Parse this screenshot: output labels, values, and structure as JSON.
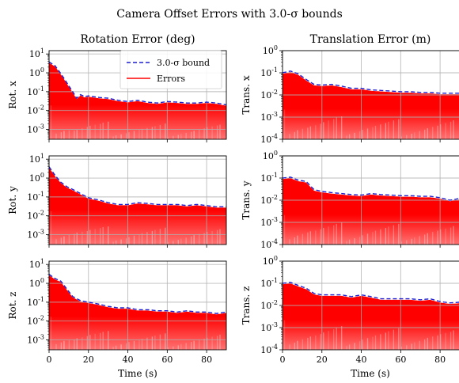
{
  "figure": {
    "title": "Camera Offset Errors with 3.0-σ bounds",
    "col_titles": [
      "Rotation Error (deg)",
      "Translation Error (m)"
    ],
    "xlabel": "Time (s)"
  },
  "legend": {
    "bound": "3.0-σ bound",
    "errors": "Errors"
  },
  "colors": {
    "bound": "#1f1fd0",
    "errors": "#ff0000",
    "grid": "#b0b0b0"
  },
  "chart_data": [
    {
      "type": "area",
      "row": 0,
      "col": 0,
      "ylabel": "Rot. x",
      "yscale": "log",
      "xlim": [
        0,
        90
      ],
      "ylim": [
        0.0003,
        15
      ],
      "xticks": [
        0,
        20,
        40,
        60,
        80
      ],
      "yticks": [
        0.001,
        0.01,
        0.1,
        1,
        10
      ],
      "ytick_labels": [
        "10^-3",
        "10^-2",
        "10^-1",
        "10^0",
        "10^1"
      ],
      "series": [
        {
          "name": "3.0-σ bound",
          "x": [
            0,
            3,
            6,
            9,
            12,
            14,
            16,
            18,
            20,
            25,
            30,
            35,
            40,
            45,
            50,
            55,
            60,
            65,
            70,
            75,
            80,
            85,
            90
          ],
          "y": [
            3.8,
            2.4,
            0.9,
            0.3,
            0.1,
            0.045,
            0.07,
            0.055,
            0.06,
            0.05,
            0.045,
            0.035,
            0.03,
            0.035,
            0.028,
            0.025,
            0.03,
            0.028,
            0.025,
            0.025,
            0.028,
            0.025,
            0.02
          ]
        }
      ]
    },
    {
      "type": "area",
      "row": 1,
      "col": 0,
      "ylabel": "Rot. y",
      "yscale": "log",
      "xlim": [
        0,
        90
      ],
      "ylim": [
        0.0003,
        15
      ],
      "xticks": [
        0,
        20,
        40,
        60,
        80
      ],
      "yticks": [
        0.001,
        0.01,
        0.1,
        1,
        10
      ],
      "ytick_labels": [
        "10^-3",
        "10^-2",
        "10^-1",
        "10^0",
        "10^1"
      ],
      "series": [
        {
          "name": "3.0-σ bound",
          "x": [
            0,
            3,
            6,
            9,
            12,
            16,
            20,
            25,
            30,
            35,
            40,
            45,
            50,
            55,
            60,
            65,
            70,
            75,
            80,
            85,
            90
          ],
          "y": [
            4,
            1.4,
            0.6,
            0.35,
            0.25,
            0.15,
            0.09,
            0.07,
            0.05,
            0.04,
            0.04,
            0.05,
            0.045,
            0.04,
            0.04,
            0.04,
            0.035,
            0.04,
            0.035,
            0.03,
            0.03
          ]
        }
      ]
    },
    {
      "type": "area",
      "row": 2,
      "col": 0,
      "ylabel": "Rot. z",
      "yscale": "log",
      "xlim": [
        0,
        90
      ],
      "ylim": [
        0.0003,
        15
      ],
      "xticks": [
        0,
        20,
        40,
        60,
        80
      ],
      "yticks": [
        0.001,
        0.01,
        0.1,
        1,
        10
      ],
      "ytick_labels": [
        "10^-3",
        "10^-2",
        "10^-1",
        "10^0",
        "10^1"
      ],
      "series": [
        {
          "name": "3.0-σ bound",
          "x": [
            0,
            3,
            6,
            9,
            12,
            16,
            20,
            25,
            30,
            35,
            40,
            45,
            50,
            55,
            60,
            65,
            70,
            75,
            80,
            85,
            90
          ],
          "y": [
            3,
            1.8,
            1.3,
            0.5,
            0.2,
            0.12,
            0.1,
            0.08,
            0.06,
            0.05,
            0.05,
            0.04,
            0.04,
            0.035,
            0.035,
            0.03,
            0.035,
            0.03,
            0.03,
            0.025,
            0.03
          ]
        }
      ]
    },
    {
      "type": "area",
      "row": 0,
      "col": 1,
      "ylabel": "Trans. x",
      "yscale": "log",
      "xlim": [
        0,
        90
      ],
      "ylim": [
        0.0001,
        1
      ],
      "xticks": [
        0,
        20,
        40,
        60,
        80
      ],
      "yticks": [
        0.0001,
        0.001,
        0.01,
        0.1,
        1
      ],
      "ytick_labels": [
        "10^-4",
        "10^-3",
        "10^-2",
        "10^-1",
        "10^0"
      ],
      "series": [
        {
          "name": "3.0-σ bound",
          "x": [
            0,
            4,
            8,
            12,
            16,
            20,
            25,
            30,
            35,
            40,
            45,
            50,
            55,
            60,
            65,
            70,
            75,
            80,
            85,
            90
          ],
          "y": [
            0.1,
            0.12,
            0.09,
            0.05,
            0.03,
            0.028,
            0.03,
            0.025,
            0.02,
            0.02,
            0.017,
            0.016,
            0.015,
            0.014,
            0.014,
            0.013,
            0.013,
            0.012,
            0.012,
            0.012
          ]
        }
      ]
    },
    {
      "type": "area",
      "row": 1,
      "col": 1,
      "ylabel": "Trans. y",
      "yscale": "log",
      "xlim": [
        0,
        90
      ],
      "ylim": [
        0.0001,
        1
      ],
      "xticks": [
        0,
        20,
        40,
        60,
        80
      ],
      "yticks": [
        0.0001,
        0.001,
        0.01,
        0.1,
        1
      ],
      "ytick_labels": [
        "10^-4",
        "10^-3",
        "10^-2",
        "10^-1",
        "10^0"
      ],
      "series": [
        {
          "name": "3.0-σ bound",
          "x": [
            0,
            4,
            8,
            12,
            16,
            20,
            25,
            30,
            35,
            40,
            45,
            50,
            55,
            60,
            65,
            70,
            75,
            80,
            85,
            90
          ],
          "y": [
            0.1,
            0.11,
            0.08,
            0.07,
            0.03,
            0.025,
            0.022,
            0.02,
            0.018,
            0.017,
            0.02,
            0.018,
            0.017,
            0.016,
            0.016,
            0.015,
            0.015,
            0.013,
            0.01,
            0.012
          ]
        }
      ]
    },
    {
      "type": "area",
      "row": 2,
      "col": 1,
      "ylabel": "Trans. z",
      "yscale": "log",
      "xlim": [
        0,
        90
      ],
      "ylim": [
        0.0001,
        1
      ],
      "xticks": [
        0,
        20,
        40,
        60,
        80
      ],
      "yticks": [
        0.0001,
        0.001,
        0.01,
        0.1,
        1
      ],
      "ytick_labels": [
        "10^-4",
        "10^-3",
        "10^-2",
        "10^-1",
        "10^0"
      ],
      "series": [
        {
          "name": "3.0-σ bound",
          "x": [
            0,
            4,
            8,
            12,
            16,
            20,
            25,
            30,
            35,
            40,
            45,
            50,
            55,
            60,
            65,
            70,
            75,
            80,
            85,
            90
          ],
          "y": [
            0.1,
            0.11,
            0.08,
            0.06,
            0.035,
            0.03,
            0.03,
            0.03,
            0.025,
            0.03,
            0.025,
            0.02,
            0.02,
            0.02,
            0.02,
            0.018,
            0.02,
            0.015,
            0.013,
            0.014
          ]
        }
      ]
    }
  ]
}
